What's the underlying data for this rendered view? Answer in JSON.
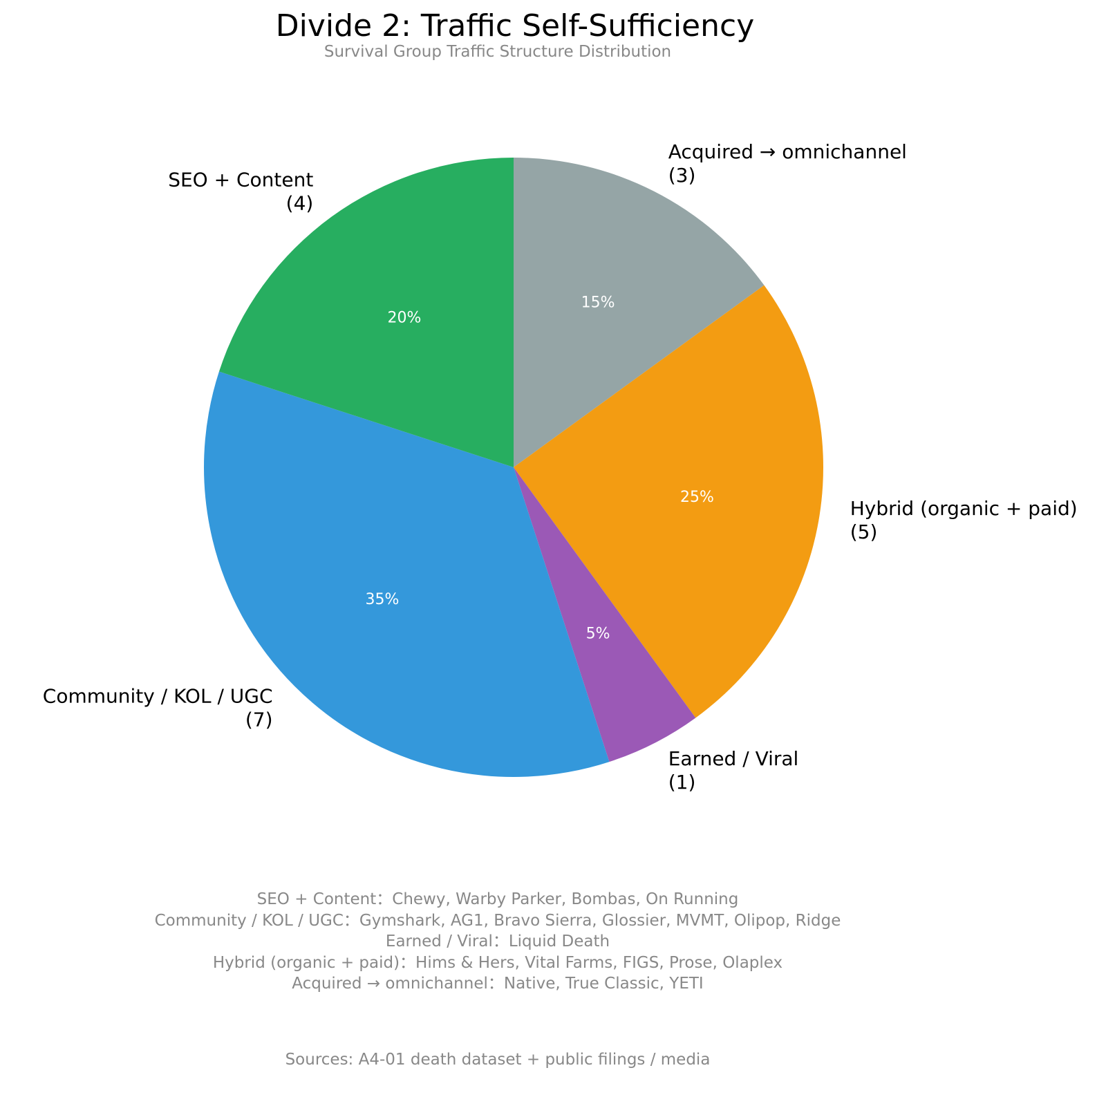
{
  "chart_data": {
    "type": "pie",
    "title": "Divide 2: Traffic Self-Sufficiency",
    "subtitle": "Survival Group Traffic Structure Distribution",
    "categories": [
      "Acquired → omnichannel",
      "Hybrid (organic + paid)",
      "Earned / Viral",
      "Community / KOL / UGC",
      "SEO + Content"
    ],
    "counts": [
      3,
      5,
      1,
      7,
      4
    ],
    "values": [
      15,
      25,
      5,
      35,
      20
    ],
    "value_labels": [
      "15%",
      "25%",
      "5%",
      "35%",
      "20%"
    ],
    "count_labels": [
      "(3)",
      "(5)",
      "(1)",
      "(7)",
      "(4)"
    ],
    "colors": [
      "#95a5a6",
      "#f39c12",
      "#9b59b6",
      "#3498db",
      "#27ae60"
    ],
    "start_angle_deg": 90,
    "direction": "clockwise"
  },
  "notes": [
    "SEO + Content：Chewy, Warby Parker, Bombas, On Running",
    "Community / KOL / UGC：Gymshark, AG1, Bravo Sierra, Glossier, MVMT, Olipop, Ridge",
    "Earned / Viral：Liquid Death",
    "Hybrid (organic + paid)：Hims & Hers, Vital Farms, FIGS, Prose, Olaplex",
    "Acquired → omnichannel：Native, True Classic, YETI"
  ],
  "source": "Sources: A4-01 death dataset + public filings / media"
}
